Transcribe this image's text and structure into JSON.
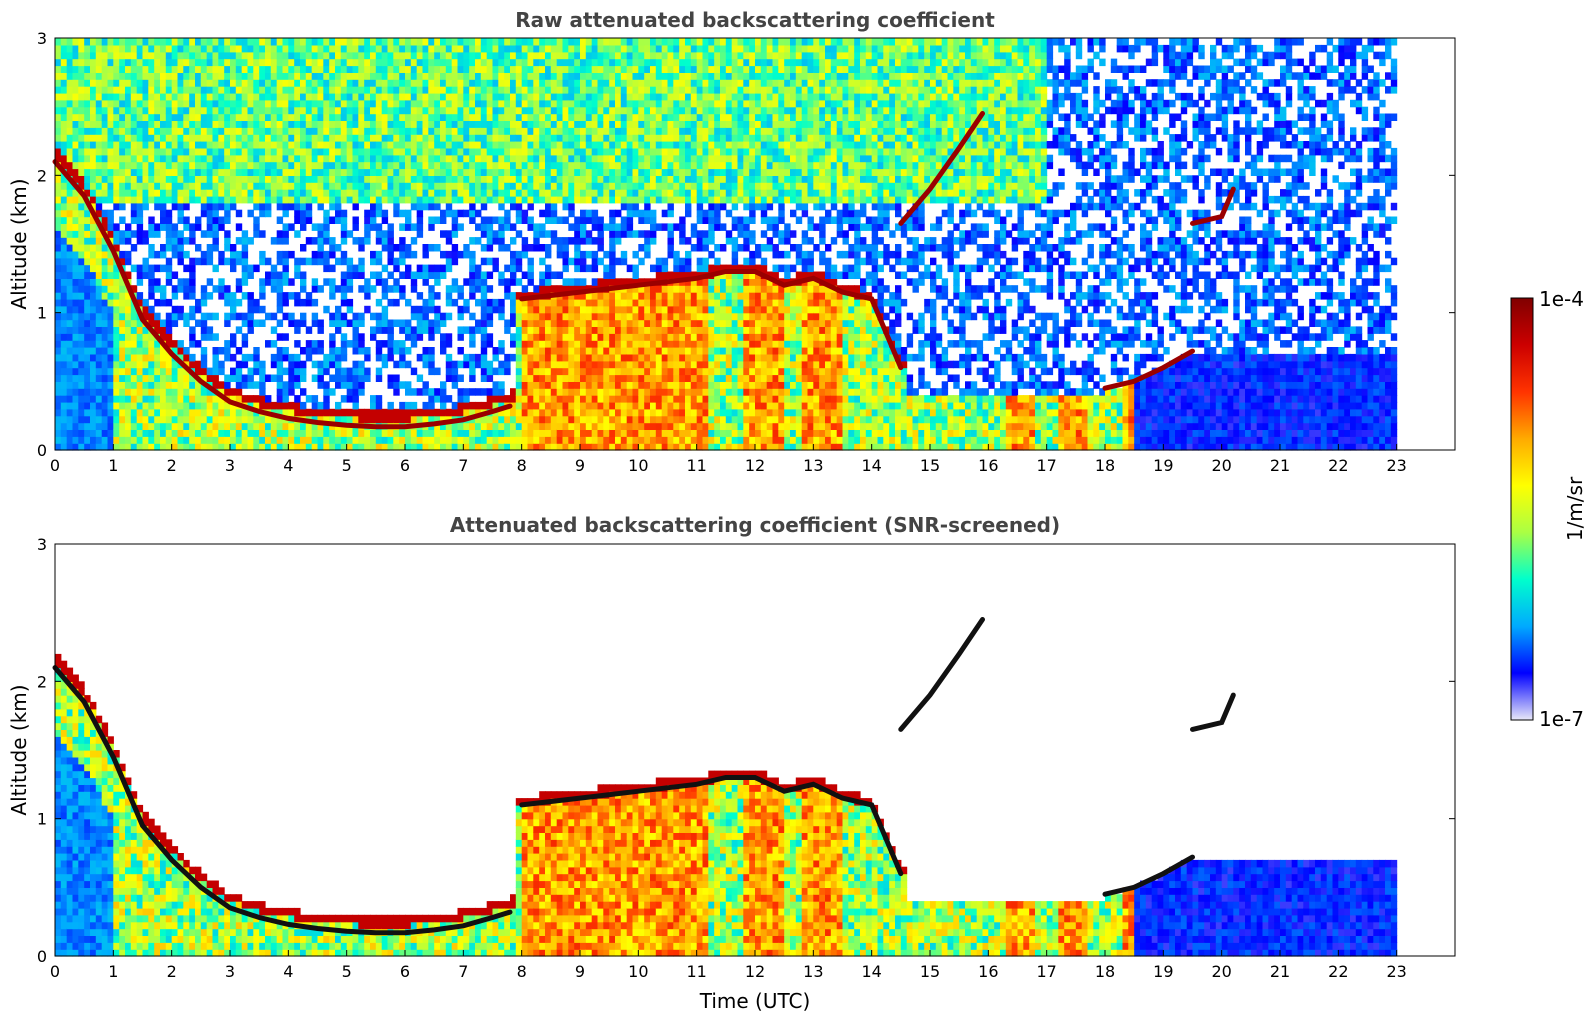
{
  "chart_data": [
    {
      "type": "heatmap",
      "title": "Raw attenuated backscattering coefficient",
      "xlabel": "",
      "ylabel": "Altitude (km)",
      "xlim": [
        0,
        24
      ],
      "ylim": [
        0,
        3
      ],
      "xticks": [
        "0",
        "1",
        "2",
        "3",
        "4",
        "5",
        "6",
        "7",
        "8",
        "9",
        "10",
        "11",
        "12",
        "13",
        "14",
        "15",
        "16",
        "17",
        "18",
        "19",
        "20",
        "21",
        "22",
        "23"
      ],
      "yticks": [
        "0",
        "1",
        "2",
        "3"
      ],
      "data_end_time": 23,
      "noise_level": "high",
      "layers": [
        {
          "name": "descending-layer",
          "x": [
            0,
            0.5,
            1,
            1.5,
            2,
            2.5,
            3,
            3.5,
            4,
            4.5,
            5,
            5.5,
            6,
            6.5,
            7,
            7.5,
            7.8
          ],
          "y": [
            2.1,
            1.85,
            1.45,
            0.95,
            0.7,
            0.5,
            0.35,
            0.28,
            0.23,
            0.2,
            0.18,
            0.17,
            0.17,
            0.19,
            0.22,
            0.28,
            0.32
          ]
        },
        {
          "name": "boundary-layer-top",
          "x": [
            8,
            9,
            10,
            11,
            11.5,
            12,
            12.5,
            13,
            13.5,
            14,
            14.5
          ],
          "y": [
            1.1,
            1.15,
            1.2,
            1.25,
            1.3,
            1.3,
            1.2,
            1.25,
            1.15,
            1.1,
            0.6
          ]
        },
        {
          "name": "elevated-layer",
          "x": [
            14.5,
            15,
            15.5,
            15.9
          ],
          "y": [
            1.65,
            1.9,
            2.2,
            2.45
          ]
        },
        {
          "name": "evening-layer",
          "x": [
            18,
            18.5,
            19,
            19.5
          ],
          "y": [
            0.45,
            0.5,
            0.6,
            0.72
          ]
        },
        {
          "name": "cloud-20h",
          "x": [
            19.5,
            20,
            20.2
          ],
          "y": [
            1.65,
            1.7,
            1.9
          ]
        }
      ],
      "strong_columns": [
        [
          8,
          11.2
        ],
        [
          11.8,
          12.5
        ],
        [
          12.8,
          13.5
        ],
        [
          16.3,
          16.8
        ],
        [
          17.2,
          17.7
        ],
        [
          18.3,
          18.5
        ]
      ]
    },
    {
      "type": "heatmap",
      "title": "Attenuated backscattering coefficient (SNR-screened)",
      "xlabel": "Time (UTC)",
      "ylabel": "Altitude (km)",
      "xlim": [
        0,
        24
      ],
      "ylim": [
        0,
        3
      ],
      "xticks": [
        "0",
        "1",
        "2",
        "3",
        "4",
        "5",
        "6",
        "7",
        "8",
        "9",
        "10",
        "11",
        "12",
        "13",
        "14",
        "15",
        "16",
        "17",
        "18",
        "19",
        "20",
        "21",
        "22",
        "23"
      ],
      "yticks": [
        "0",
        "1",
        "2",
        "3"
      ],
      "data_end_time": 23,
      "noise_level": "screened"
    }
  ],
  "colorbar": {
    "label": "1/m/sr",
    "max_label": "1e-4",
    "min_label": "1e-7",
    "colormap": [
      "#e8e8f8",
      "#0000ff",
      "#00aaff",
      "#00ffcc",
      "#aaff44",
      "#ffff00",
      "#ffaa00",
      "#ff3300",
      "#cc0000",
      "#800000"
    ]
  }
}
